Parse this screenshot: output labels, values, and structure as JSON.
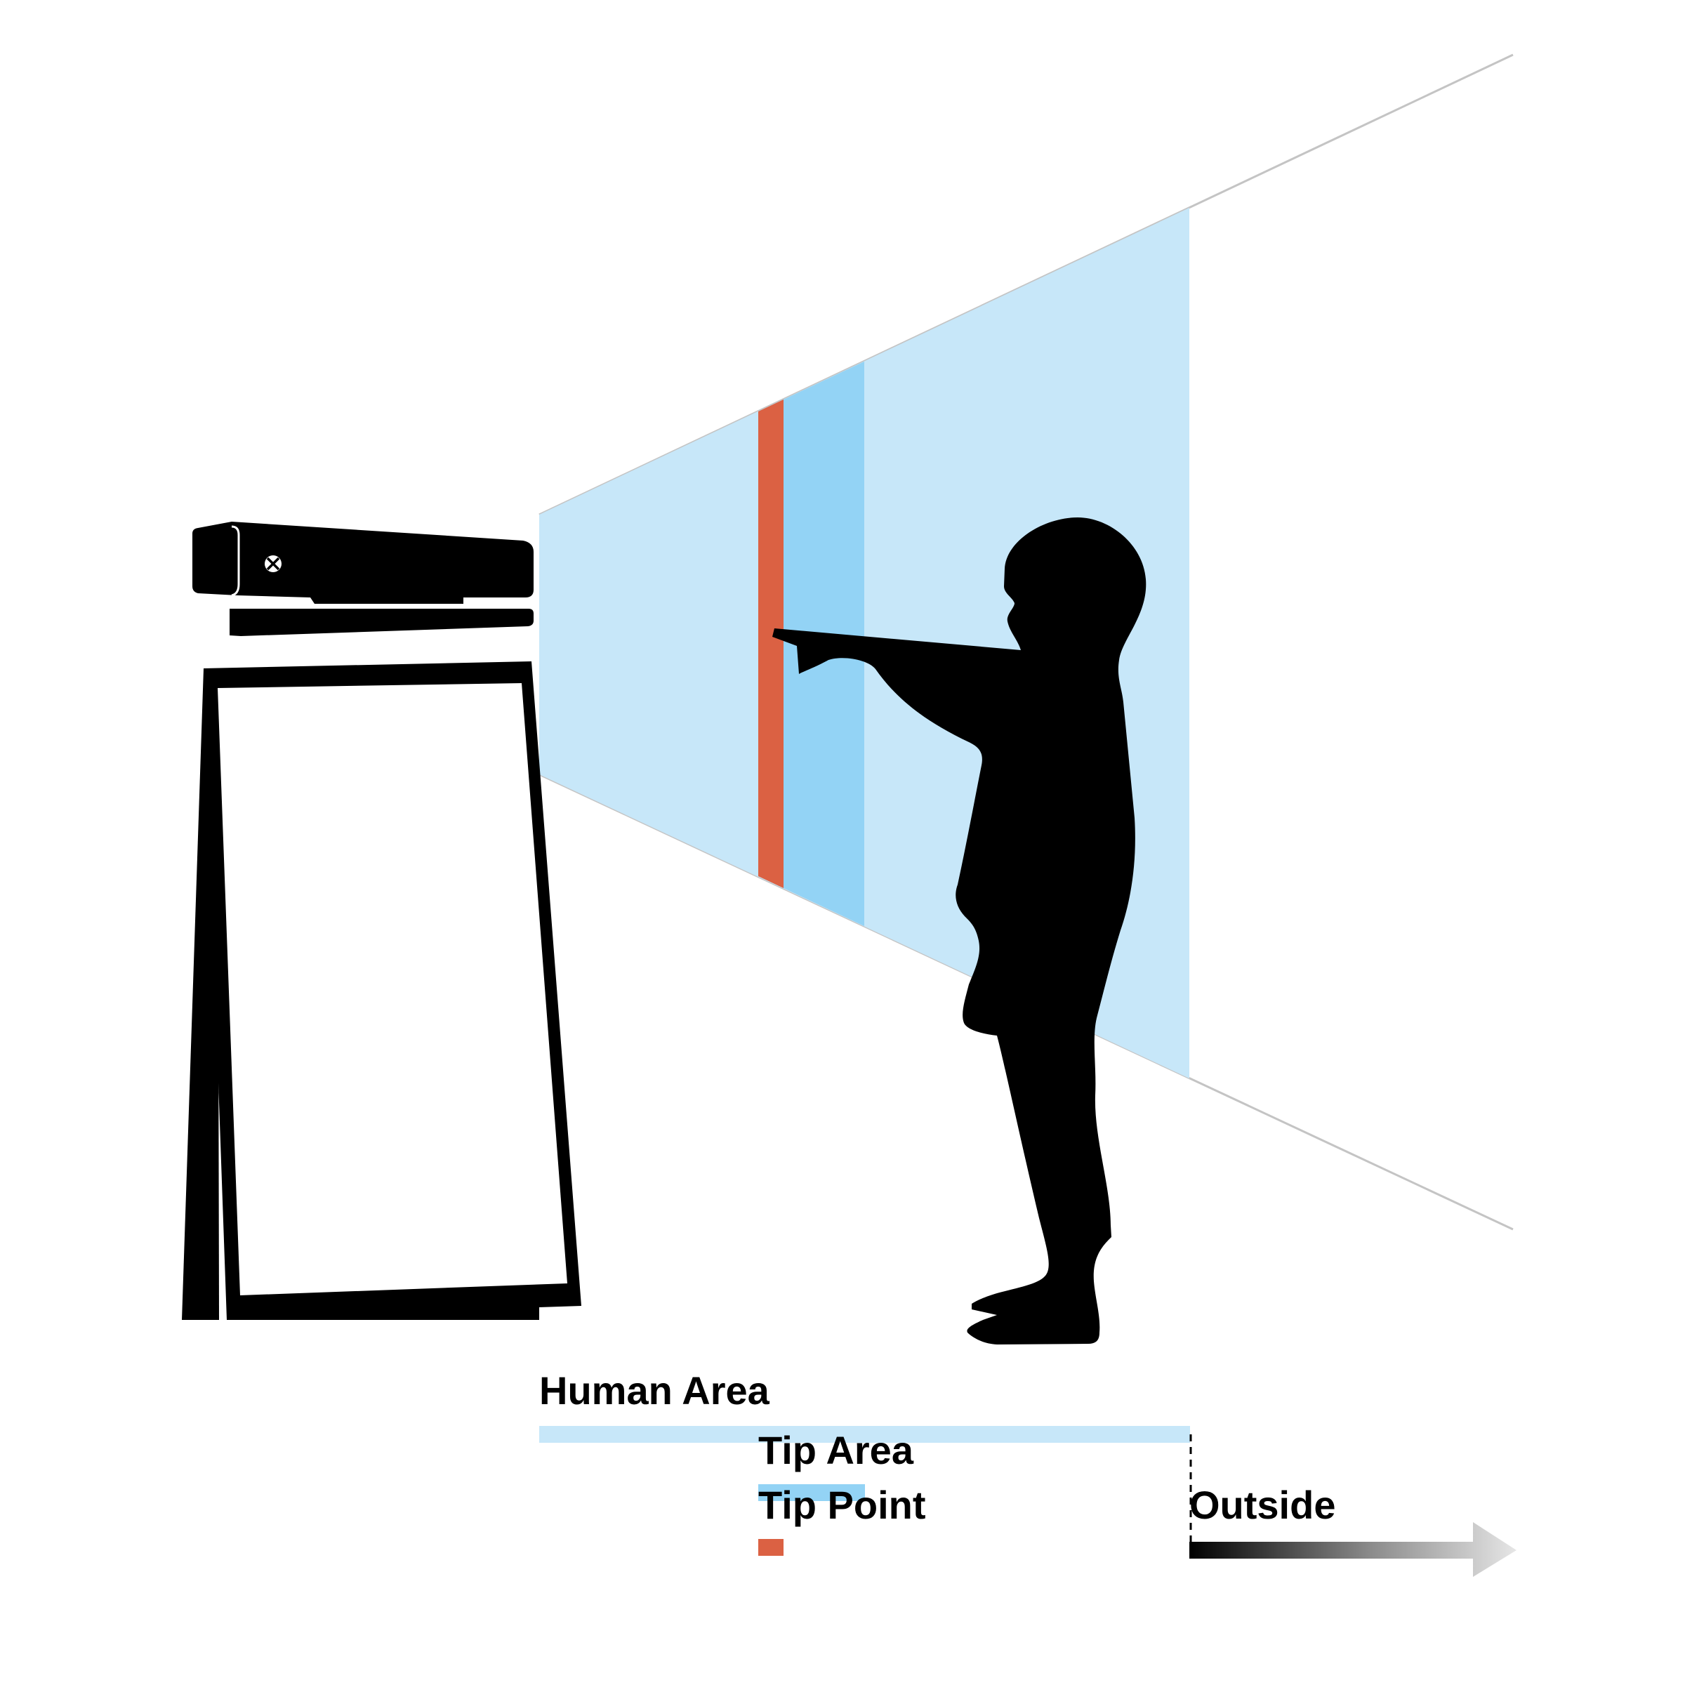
{
  "legend": {
    "human_area": "Human Area",
    "tip_area": "Tip Area",
    "tip_point": "Tip Point",
    "outside": "Outside"
  },
  "colors": {
    "human_area": "#c7e7f9",
    "tip_area": "#93d3f5",
    "tip_point": "#db6143",
    "silhouette": "#000000",
    "frustum_edge": "#c4c4c4",
    "background": "#ffffff"
  },
  "icons": {
    "sensor": "kinect-sensor-icon",
    "sensor_logo": "xbox-logo-icon",
    "screen": "display-screen-icon",
    "person": "child-pointing-silhouette",
    "arrow": "arrow-right-icon"
  }
}
